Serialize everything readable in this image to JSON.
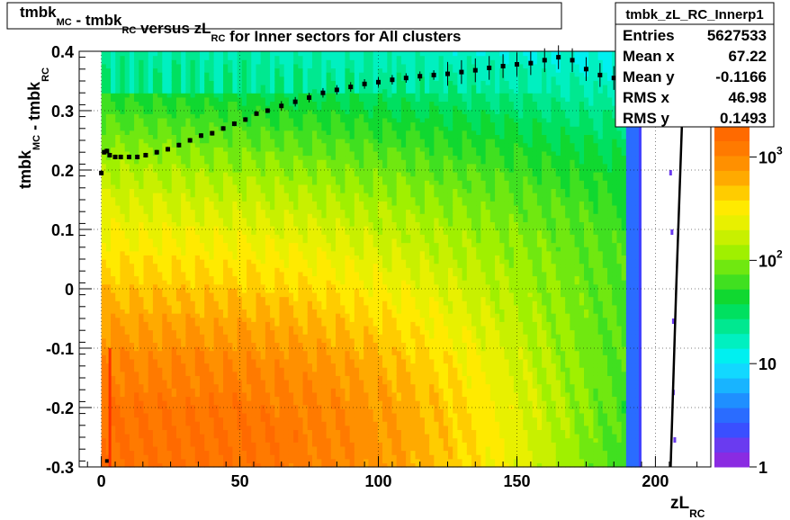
{
  "chart_data": {
    "type": "heatmap",
    "title": {
      "parts": [
        {
          "text": "tmbk",
          "sub": "MC"
        },
        {
          "text": " - tmbk",
          "sub": "RC"
        },
        {
          "text": " versus zL",
          "sub": "RC"
        },
        {
          "text": " for Inner sectors for All clusters",
          "sub": ""
        }
      ]
    },
    "xlabel": {
      "main": "zL",
      "sub": "RC"
    },
    "ylabel": {
      "parts": [
        {
          "text": "tmbk",
          "sub": "MC"
        },
        {
          "text": " - tmbk",
          "sub": "RC"
        }
      ]
    },
    "xlim": [
      -8,
      220
    ],
    "ylim": [
      -0.3,
      0.4
    ],
    "x_ticks": [
      0,
      50,
      100,
      150,
      200
    ],
    "x_tick_labels": [
      "0",
      "50",
      "100",
      "150",
      "200"
    ],
    "y_ticks": [
      -0.3,
      -0.2,
      -0.1,
      0,
      0.1,
      0.2,
      0.3,
      0.4
    ],
    "y_tick_labels": [
      "-0.3",
      "-0.2",
      "-0.1",
      "0",
      "0.1",
      "0.2",
      "0.3",
      "0.4"
    ],
    "grid": true,
    "z_scale": "log",
    "z_range": [
      1,
      2000
    ],
    "colorbar_labels": [
      {
        "value": 1,
        "base": "1",
        "exp": ""
      },
      {
        "value": 10,
        "base": "10",
        "exp": ""
      },
      {
        "value": 100,
        "base": "10",
        "exp": "2"
      },
      {
        "value": 1000,
        "base": "10",
        "exp": "3"
      }
    ],
    "profile": {
      "x": [
        0,
        1,
        2,
        3,
        5,
        7,
        10,
        13,
        16,
        20,
        24,
        28,
        32,
        36,
        40,
        44,
        48,
        52,
        56,
        60,
        65,
        70,
        75,
        80,
        85,
        90,
        95,
        100,
        105,
        110,
        115,
        120,
        125,
        130,
        135,
        140,
        145,
        150,
        155,
        160,
        165,
        170,
        175,
        180,
        185,
        190
      ],
      "y": [
        0.195,
        0.23,
        0.232,
        0.225,
        0.222,
        0.222,
        0.222,
        0.222,
        0.225,
        0.23,
        0.235,
        0.242,
        0.25,
        0.258,
        0.262,
        0.27,
        0.278,
        0.285,
        0.295,
        0.3,
        0.308,
        0.315,
        0.322,
        0.33,
        0.335,
        0.34,
        0.345,
        0.348,
        0.352,
        0.355,
        0.358,
        0.36,
        0.362,
        0.365,
        0.368,
        0.372,
        0.375,
        0.378,
        0.38,
        0.385,
        0.39,
        0.385,
        0.37,
        0.36,
        0.355,
        0.33
      ],
      "low_points": [
        {
          "x": 2,
          "y": -0.29
        }
      ]
    },
    "stats_box": {
      "title": "tmbk_zL_RC_Innerp1",
      "rows": [
        {
          "label": "Entries",
          "value": "5627533"
        },
        {
          "label": "Mean x",
          "value": "67.22"
        },
        {
          "label": "Mean y",
          "value": "-0.1166"
        },
        {
          "label": "RMS x",
          "value": "46.98"
        },
        {
          "label": "RMS y",
          "value": "0.1493"
        }
      ]
    }
  }
}
